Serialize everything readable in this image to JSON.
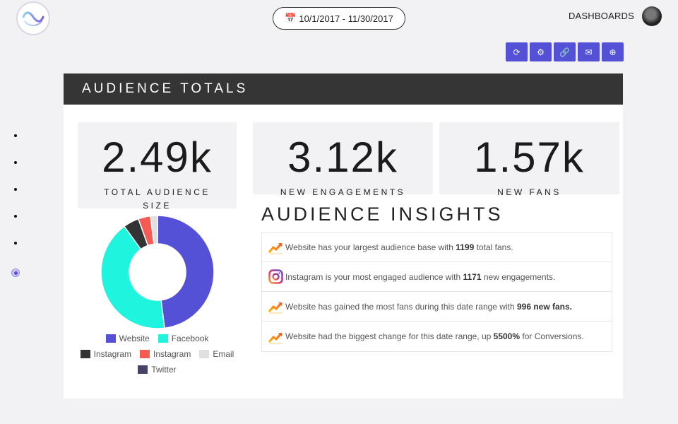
{
  "header": {
    "date_range": "10/1/2017 - 11/30/2017",
    "dashboards_label": "DASHBOARDS"
  },
  "toolbar": {
    "buttons": [
      {
        "icon": "refresh-icon",
        "glyph": "⟳"
      },
      {
        "icon": "gear-icon",
        "glyph": "⚙"
      },
      {
        "icon": "link-icon",
        "glyph": "🔗"
      },
      {
        "icon": "envelope-icon",
        "glyph": "✉"
      },
      {
        "icon": "add-icon",
        "glyph": "⊕"
      }
    ]
  },
  "card": {
    "title": "AUDIENCE TOTALS",
    "stats": [
      {
        "value": "2.49k",
        "label": "TOTAL AUDIENCE SIZE"
      },
      {
        "value": "3.12k",
        "label": "NEW ENGAGEMENTS"
      },
      {
        "value": "1.57k",
        "label": "NEW FANS"
      }
    ],
    "insights_title": "AUDIENCE INSIGHTS",
    "insights": [
      {
        "icon": "trend-icon",
        "pre": "Website has your largest audience base with ",
        "bold": "1199",
        "post": " total fans."
      },
      {
        "icon": "instagram-icon",
        "pre": "Instagram is your most engaged audience with ",
        "bold": "1171",
        "post": " new engagements."
      },
      {
        "icon": "trend-icon",
        "pre": "Website has gained the most fans during this date range with ",
        "bold": "996 new fans.",
        "post": ""
      },
      {
        "icon": "trend-icon",
        "pre": "Website had the biggest change for this date range, up ",
        "bold": "5500%",
        "post": " for Conversions."
      }
    ]
  },
  "chart_data": {
    "type": "pie",
    "subtype": "donut",
    "categories": [
      "Website",
      "Facebook",
      "Instagram",
      "Instagram",
      "Email",
      "Twitter"
    ],
    "values": [
      48,
      42,
      4.5,
      3.5,
      2,
      0
    ],
    "colors": [
      "#5451d6",
      "#1ff4de",
      "#333333",
      "#f45b53",
      "#e0e0e0",
      "#444466"
    ]
  }
}
